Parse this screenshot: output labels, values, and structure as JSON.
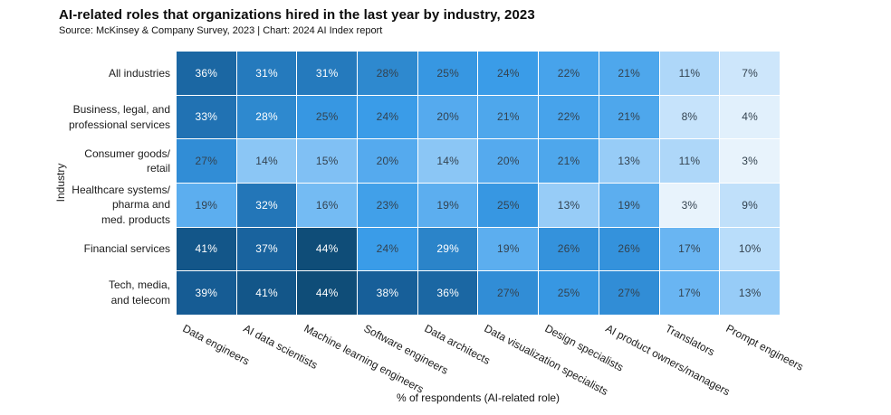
{
  "header": {
    "title": "AI-related roles that organizations hired in the last year by industry, 2023",
    "source": "Source: McKinsey & Company Survey, 2023 | Chart: 2024 AI Index report"
  },
  "chart_data": {
    "type": "heatmap",
    "title": "AI-related roles that organizations hired in the last year by industry, 2023",
    "xlabel": "% of respondents (AI-related role)",
    "ylabel": "Industry",
    "columns": [
      "Data engineers",
      "AI data scientists",
      "Machine learning engineers",
      "Software engineers",
      "Data architects",
      "Data visualization specialists",
      "Design specialists",
      "AI product owners/managers",
      "Translators",
      "Prompt engineers"
    ],
    "rows": [
      "All industries",
      "Business, legal, and\nprofessional services",
      "Consumer goods/\nretail",
      "Healthcare systems/\npharma and\nmed. products",
      "Financial services",
      "Tech, media,\nand telecom"
    ],
    "values": [
      [
        36,
        31,
        31,
        28,
        25,
        24,
        22,
        21,
        11,
        7
      ],
      [
        33,
        28,
        25,
        24,
        20,
        21,
        22,
        21,
        8,
        4
      ],
      [
        27,
        14,
        15,
        20,
        14,
        20,
        21,
        13,
        11,
        3
      ],
      [
        19,
        32,
        16,
        23,
        19,
        25,
        13,
        19,
        3,
        9
      ],
      [
        41,
        37,
        44,
        24,
        29,
        19,
        26,
        26,
        17,
        10
      ],
      [
        39,
        41,
        44,
        38,
        36,
        27,
        25,
        27,
        17,
        13
      ]
    ],
    "value_suffix": "%",
    "value_range": [
      3,
      44
    ],
    "grid": false,
    "legend": "none",
    "colorscale": [
      {
        "value": 3,
        "color": "#e8f3fc"
      },
      {
        "value": 10,
        "color": "#b9ddfa"
      },
      {
        "value": 17,
        "color": "#69b5f2"
      },
      {
        "value": 24,
        "color": "#3a9ce8"
      },
      {
        "value": 31,
        "color": "#257abd"
      },
      {
        "value": 38,
        "color": "#175f99"
      },
      {
        "value": 44,
        "color": "#0f4d78"
      }
    ],
    "text_colors": {
      "on_dark": "#ffffff",
      "on_light": "#33424f"
    },
    "white_text_min": 29,
    "white_text_exceptions": [
      [
        1,
        1
      ]
    ]
  }
}
